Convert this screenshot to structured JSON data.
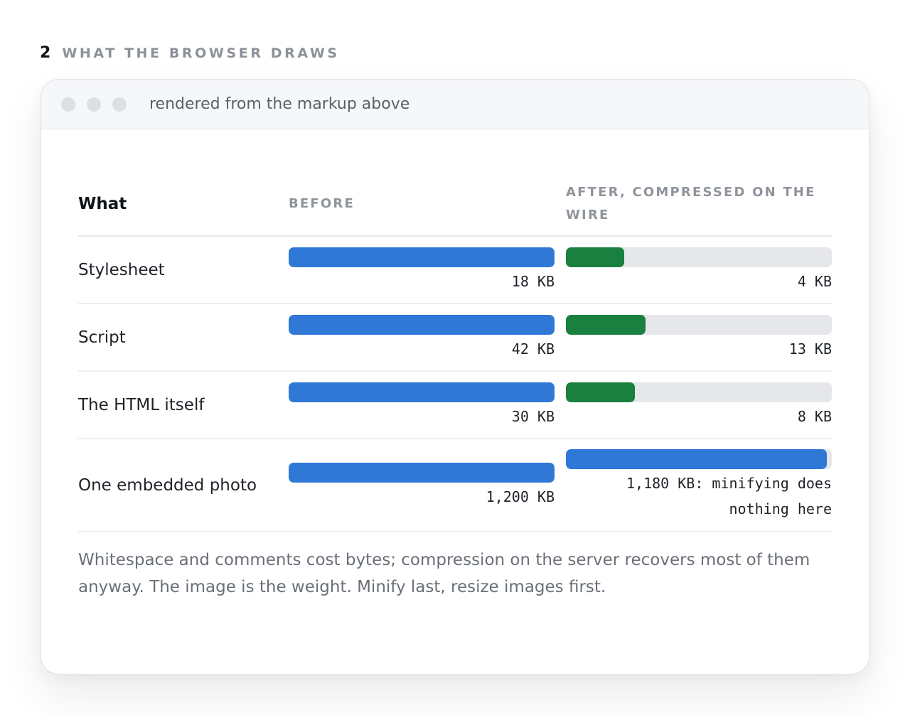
{
  "section": {
    "number": "2",
    "title": "WHAT THE BROWSER DRAWS"
  },
  "window": {
    "caption": "rendered from the markup above"
  },
  "table": {
    "headers": {
      "what": "What",
      "before": "BEFORE",
      "after": "AFTER, COMPRESSED ON THE WIRE"
    },
    "rows": [
      {
        "label": "Stylesheet",
        "before_text": "18 KB",
        "before_fraction": 1.0,
        "after_text": "4 KB",
        "after_fraction": 0.22,
        "after_color": "#198040"
      },
      {
        "label": "Script",
        "before_text": "42 KB",
        "before_fraction": 1.0,
        "after_text": "13 KB",
        "after_fraction": 0.3,
        "after_color": "#198040"
      },
      {
        "label": "The HTML itself",
        "before_text": "30 KB",
        "before_fraction": 1.0,
        "after_text": "8 KB",
        "after_fraction": 0.26,
        "after_color": "#198040"
      },
      {
        "label": "One embedded photo",
        "before_text": "1,200 KB",
        "before_fraction": 1.0,
        "after_text": "1,180 KB: minifying does nothing here",
        "after_fraction": 0.98,
        "after_color": "#2f78d6"
      }
    ]
  },
  "note": "Whitespace and comments cost bytes; compression on the server recovers most of them anyway. The image is the weight. Minify last, resize images first.",
  "colors": {
    "before_bar": "#2f78d6",
    "after_bar_good": "#198040",
    "track": "#e5e7eb"
  }
}
